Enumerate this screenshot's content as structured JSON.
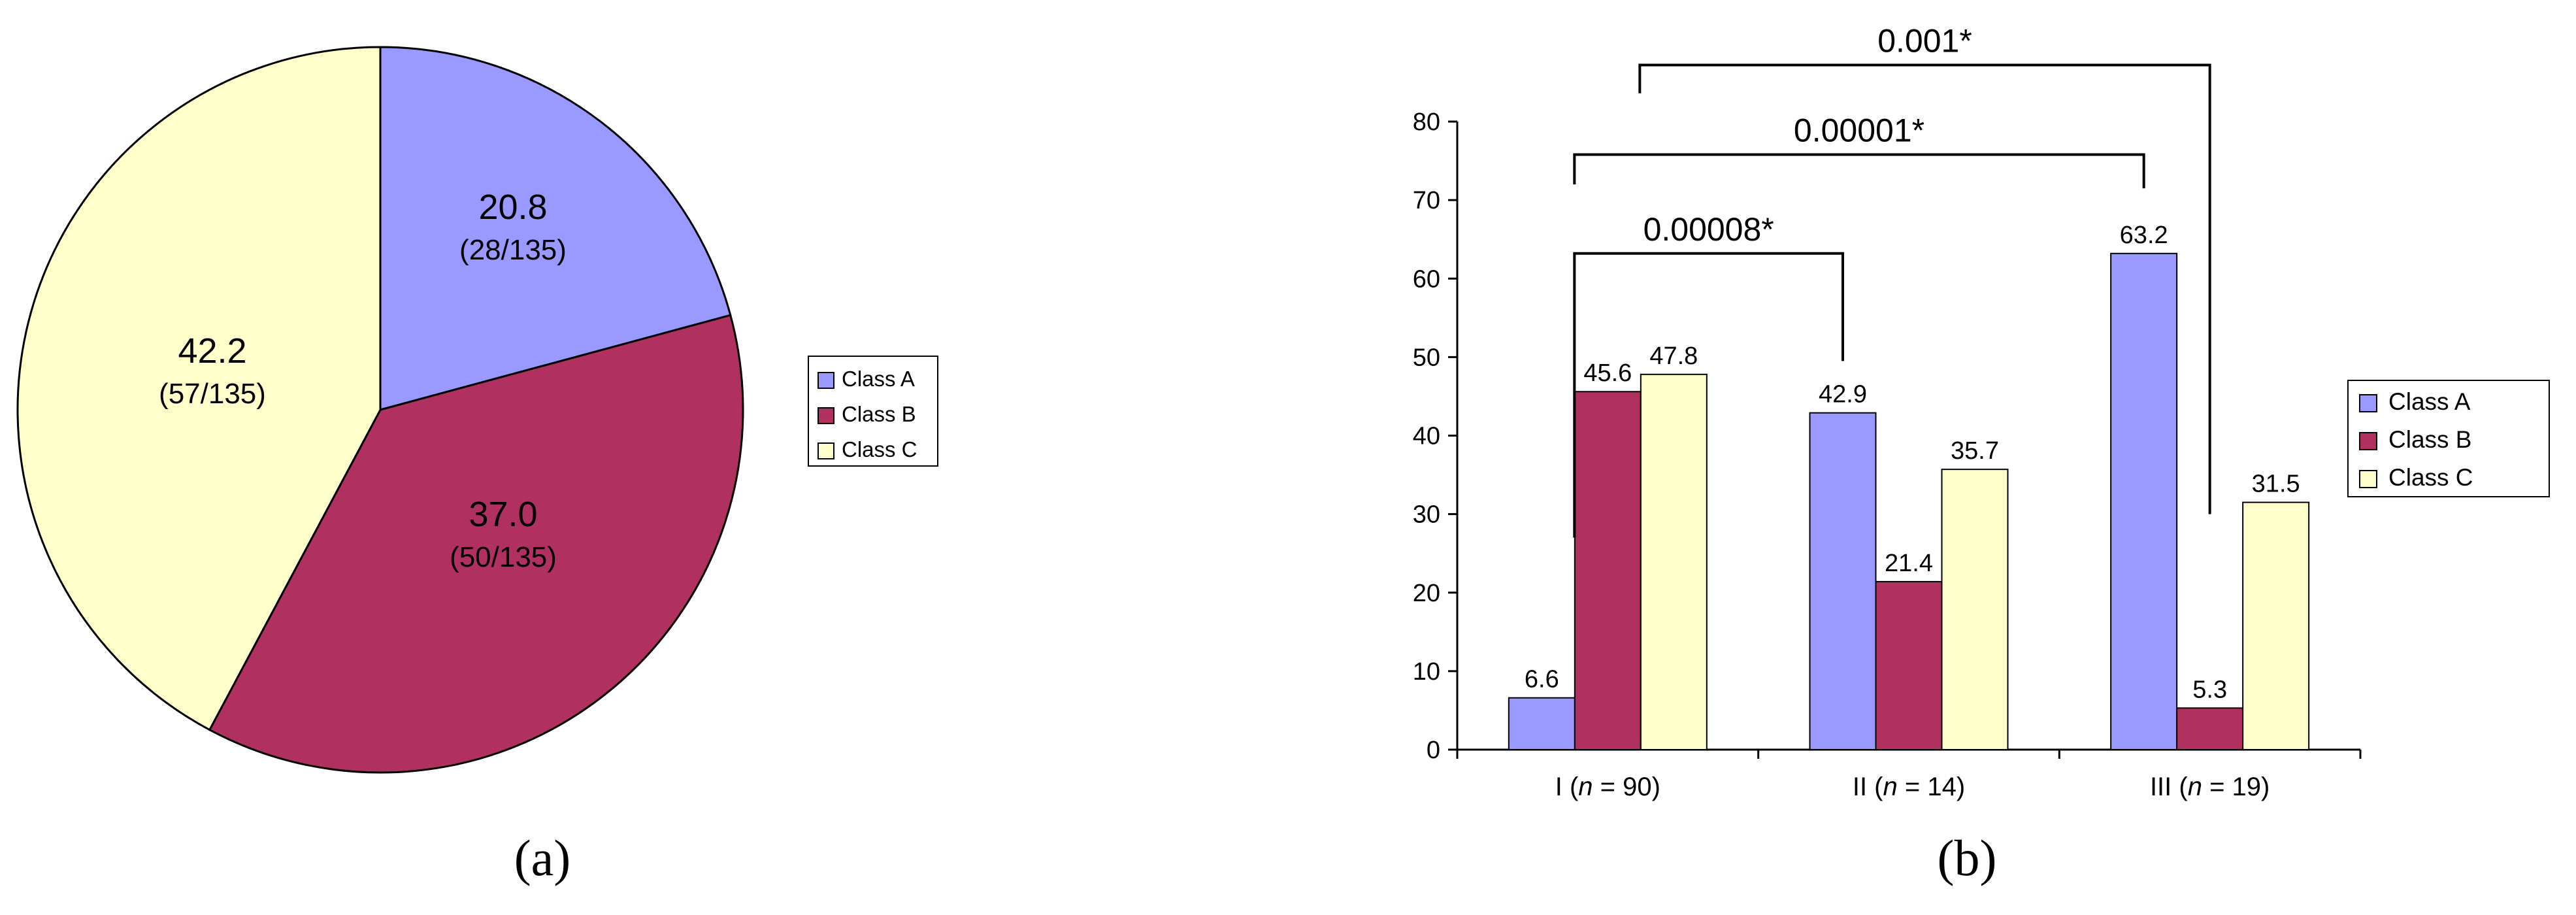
{
  "colors": {
    "class_a": "#9999FF",
    "class_b": "#B03060",
    "class_c": "#FFFFCC"
  },
  "chart_data": [
    {
      "panel": "a",
      "type": "pie",
      "caption": "(a)",
      "slices": [
        {
          "label": "Class A",
          "value": 20.8,
          "value_label": "20.8",
          "fraction_label": "(28/135)"
        },
        {
          "label": "Class B",
          "value": 37.0,
          "value_label": "37.0",
          "fraction_label": "(50/135)"
        },
        {
          "label": "Class C",
          "value": 42.2,
          "value_label": "42.2",
          "fraction_label": "(57/135)"
        }
      ],
      "legend": {
        "position": "right",
        "entries": [
          "Class A",
          "Class B",
          "Class C"
        ]
      }
    },
    {
      "panel": "b",
      "type": "bar",
      "caption": "(b)",
      "categories": [
        {
          "main": "I (",
          "italic": "n",
          "rest": " = 90)"
        },
        {
          "main": "II (",
          "italic": "n",
          "rest": " = 14)"
        },
        {
          "main": "III (",
          "italic": "n",
          "rest": " = 19)"
        }
      ],
      "series": [
        {
          "name": "Class A",
          "values": [
            6.6,
            42.9,
            63.2
          ],
          "labels": [
            "6.6",
            "42.9",
            "63.2"
          ]
        },
        {
          "name": "Class B",
          "values": [
            45.6,
            21.4,
            5.3
          ],
          "labels": [
            "45.6",
            "21.4",
            "5.3"
          ]
        },
        {
          "name": "Class C",
          "values": [
            47.8,
            35.7,
            31.5
          ],
          "labels": [
            "47.8",
            "35.7",
            "31.5"
          ]
        }
      ],
      "ylim": [
        0,
        80
      ],
      "yticks": [
        0,
        10,
        20,
        30,
        40,
        50,
        60,
        70,
        80
      ],
      "ytick_labels": [
        "0",
        "10",
        "20",
        "30",
        "40",
        "50",
        "60",
        "70",
        "80"
      ],
      "legend": {
        "position": "right",
        "entries": [
          "Class A",
          "Class B",
          "Class C"
        ]
      },
      "grid": false,
      "annotations": [
        {
          "text": "0.00008*",
          "from_group": 0,
          "to_group": 1
        },
        {
          "text": "0.00001*",
          "from_group": 0,
          "to_group": 2
        },
        {
          "text": "0.001*",
          "from_group": 0,
          "to_group": 2
        }
      ]
    }
  ]
}
